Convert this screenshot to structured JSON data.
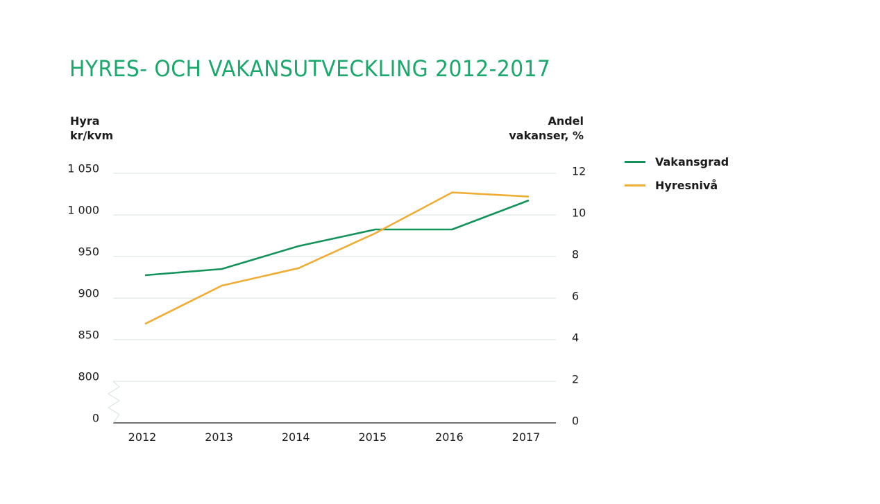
{
  "title": "HYRES- OCH VAKANSUTVECKLING 2012-2017",
  "colors": {
    "title": "#1aa86c",
    "vakansgrad": "#13925a",
    "hyresniva": "#f0ad36",
    "grid": "#d3e0e0",
    "baseline": "#1c1c1c"
  },
  "chart_data": {
    "type": "line",
    "title": "HYRES- OCH VAKANSUTVECKLING 2012-2017",
    "x": [
      "2012",
      "2013",
      "2014",
      "2015",
      "2016",
      "2017"
    ],
    "left_axis": {
      "label_lines": [
        "Hyra",
        "kr/kvm"
      ],
      "ticks": [
        0,
        800,
        850,
        900,
        950,
        1000,
        1050
      ],
      "tick_labels": [
        "0",
        "800",
        "850",
        "900",
        "950",
        "1 000",
        "1 050"
      ],
      "range": [
        800,
        1050
      ],
      "axis_break": "between 0 and 800"
    },
    "right_axis": {
      "label_lines": [
        "Andel",
        "vakanser, %"
      ],
      "ticks": [
        0,
        2,
        4,
        6,
        8,
        10,
        12
      ],
      "tick_labels": [
        "0",
        "2",
        "4",
        "6",
        "8",
        "10",
        "12"
      ],
      "range": [
        0,
        12
      ]
    },
    "series": [
      {
        "name": "Vakansgrad",
        "axis": "right",
        "color": "#13925a",
        "values": [
          7.1,
          7.4,
          8.5,
          9.3,
          9.3,
          10.7
        ]
      },
      {
        "name": "Hyresnivå",
        "axis": "left",
        "color": "#f0ad36",
        "values": [
          869,
          915,
          936,
          978,
          1027,
          1022
        ]
      }
    ],
    "grid": true,
    "legend": "right"
  }
}
